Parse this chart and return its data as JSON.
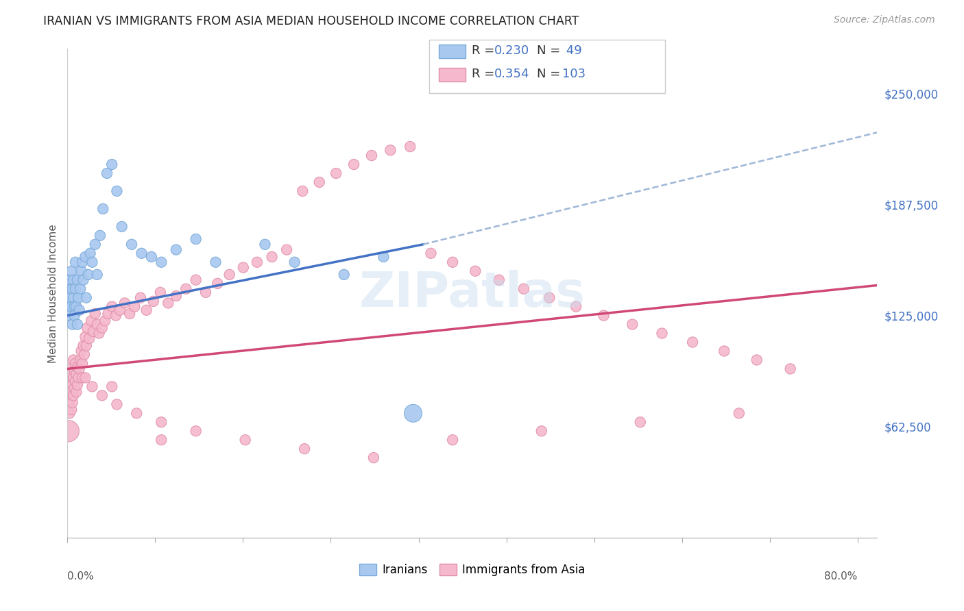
{
  "title": "IRANIAN VS IMMIGRANTS FROM ASIA MEDIAN HOUSEHOLD INCOME CORRELATION CHART",
  "source": "Source: ZipAtlas.com",
  "ylabel": "Median Household Income",
  "ytick_labels": [
    "$62,500",
    "$125,000",
    "$187,500",
    "$250,000"
  ],
  "ytick_values": [
    62500,
    125000,
    187500,
    250000
  ],
  "watermark": "ZIPatlas",
  "iranian_color": "#a8c8f0",
  "iranian_edge": "#7aaad8",
  "asia_color": "#f5b8cc",
  "asia_edge": "#e090a8",
  "trend_iranian_color": "#4472c4",
  "trend_asia_color": "#d04878",
  "trend_dashed_color": "#a0b8d8",
  "background_color": "#ffffff",
  "grid_color": "#d8d8d8",
  "ymin": 0,
  "ymax": 275000,
  "xmin": 0.0,
  "xmax": 0.82,
  "iran_trend_x": [
    0.0,
    0.36
  ],
  "iran_trend_y": [
    125000,
    165000
  ],
  "dash_trend_x": [
    0.36,
    0.82
  ],
  "dash_trend_y": [
    165000,
    228000
  ],
  "asia_trend_x": [
    0.0,
    0.82
  ],
  "asia_trend_y": [
    95000,
    142000
  ],
  "iranians_x": [
    0.001,
    0.002,
    0.002,
    0.003,
    0.003,
    0.004,
    0.004,
    0.005,
    0.005,
    0.006,
    0.006,
    0.007,
    0.007,
    0.008,
    0.008,
    0.009,
    0.01,
    0.01,
    0.011,
    0.012,
    0.013,
    0.014,
    0.015,
    0.016,
    0.018,
    0.019,
    0.021,
    0.023,
    0.025,
    0.028,
    0.03,
    0.033,
    0.036,
    0.04,
    0.045,
    0.05,
    0.055,
    0.065,
    0.075,
    0.085,
    0.095,
    0.11,
    0.13,
    0.15,
    0.2,
    0.23,
    0.28,
    0.32,
    0.35
  ],
  "iranians_y": [
    130000,
    140000,
    125000,
    135000,
    145000,
    150000,
    130000,
    140000,
    120000,
    135000,
    145000,
    130000,
    125000,
    155000,
    140000,
    130000,
    145000,
    120000,
    135000,
    128000,
    140000,
    150000,
    155000,
    145000,
    158000,
    135000,
    148000,
    160000,
    155000,
    165000,
    148000,
    170000,
    185000,
    205000,
    210000,
    195000,
    175000,
    165000,
    160000,
    158000,
    155000,
    162000,
    168000,
    155000,
    165000,
    155000,
    148000,
    158000,
    70000
  ],
  "iranians_size": [
    120,
    120,
    120,
    120,
    120,
    120,
    120,
    120,
    120,
    120,
    120,
    120,
    120,
    120,
    120,
    120,
    120,
    120,
    120,
    120,
    120,
    120,
    120,
    120,
    120,
    120,
    120,
    120,
    120,
    120,
    120,
    120,
    120,
    120,
    120,
    120,
    120,
    120,
    120,
    120,
    120,
    120,
    120,
    120,
    120,
    120,
    120,
    120,
    350
  ],
  "asia_x": [
    0.001,
    0.001,
    0.002,
    0.002,
    0.002,
    0.003,
    0.003,
    0.003,
    0.004,
    0.004,
    0.004,
    0.005,
    0.005,
    0.005,
    0.006,
    0.006,
    0.006,
    0.007,
    0.007,
    0.008,
    0.008,
    0.009,
    0.009,
    0.01,
    0.01,
    0.011,
    0.012,
    0.013,
    0.014,
    0.015,
    0.016,
    0.017,
    0.018,
    0.019,
    0.02,
    0.022,
    0.024,
    0.026,
    0.028,
    0.03,
    0.032,
    0.035,
    0.038,
    0.041,
    0.045,
    0.049,
    0.053,
    0.058,
    0.063,
    0.068,
    0.074,
    0.08,
    0.087,
    0.094,
    0.102,
    0.11,
    0.12,
    0.13,
    0.14,
    0.152,
    0.164,
    0.178,
    0.192,
    0.207,
    0.222,
    0.238,
    0.255,
    0.272,
    0.29,
    0.308,
    0.327,
    0.347,
    0.368,
    0.39,
    0.413,
    0.437,
    0.462,
    0.488,
    0.515,
    0.543,
    0.572,
    0.602,
    0.633,
    0.665,
    0.698,
    0.732,
    0.015,
    0.025,
    0.035,
    0.05,
    0.07,
    0.095,
    0.13,
    0.18,
    0.24,
    0.31,
    0.39,
    0.48,
    0.58,
    0.68,
    0.018,
    0.045,
    0.095
  ],
  "asia_y": [
    60000,
    75000,
    80000,
    70000,
    85000,
    90000,
    78000,
    88000,
    72000,
    82000,
    92000,
    76000,
    86000,
    96000,
    80000,
    90000,
    100000,
    84000,
    94000,
    88000,
    98000,
    82000,
    92000,
    86000,
    96000,
    90000,
    95000,
    100000,
    105000,
    98000,
    108000,
    103000,
    113000,
    108000,
    118000,
    112000,
    122000,
    116000,
    126000,
    120000,
    115000,
    118000,
    122000,
    126000,
    130000,
    125000,
    128000,
    132000,
    126000,
    130000,
    135000,
    128000,
    133000,
    138000,
    132000,
    136000,
    140000,
    145000,
    138000,
    143000,
    148000,
    152000,
    155000,
    158000,
    162000,
    195000,
    200000,
    205000,
    210000,
    215000,
    218000,
    220000,
    160000,
    155000,
    150000,
    145000,
    140000,
    135000,
    130000,
    125000,
    120000,
    115000,
    110000,
    105000,
    100000,
    95000,
    90000,
    85000,
    80000,
    75000,
    70000,
    65000,
    60000,
    55000,
    50000,
    45000,
    55000,
    60000,
    65000,
    70000,
    90000,
    85000,
    55000
  ],
  "asia_size": [
    500,
    120,
    120,
    120,
    120,
    120,
    120,
    120,
    120,
    120,
    120,
    120,
    120,
    120,
    120,
    120,
    120,
    120,
    120,
    120,
    120,
    120,
    120,
    120,
    120,
    120,
    120,
    120,
    120,
    120,
    120,
    120,
    120,
    120,
    120,
    120,
    120,
    120,
    120,
    120,
    120,
    120,
    120,
    120,
    120,
    120,
    120,
    120,
    120,
    120,
    120,
    120,
    120,
    120,
    120,
    120,
    120,
    120,
    120,
    120,
    120,
    120,
    120,
    120,
    120,
    120,
    120,
    120,
    120,
    120,
    120,
    120,
    120,
    120,
    120,
    120,
    120,
    120,
    120,
    120,
    120,
    120,
    120,
    120,
    120,
    120,
    120,
    120,
    120,
    120,
    120,
    120,
    120,
    120,
    120,
    120,
    120,
    120,
    120,
    120,
    120,
    120,
    120
  ]
}
